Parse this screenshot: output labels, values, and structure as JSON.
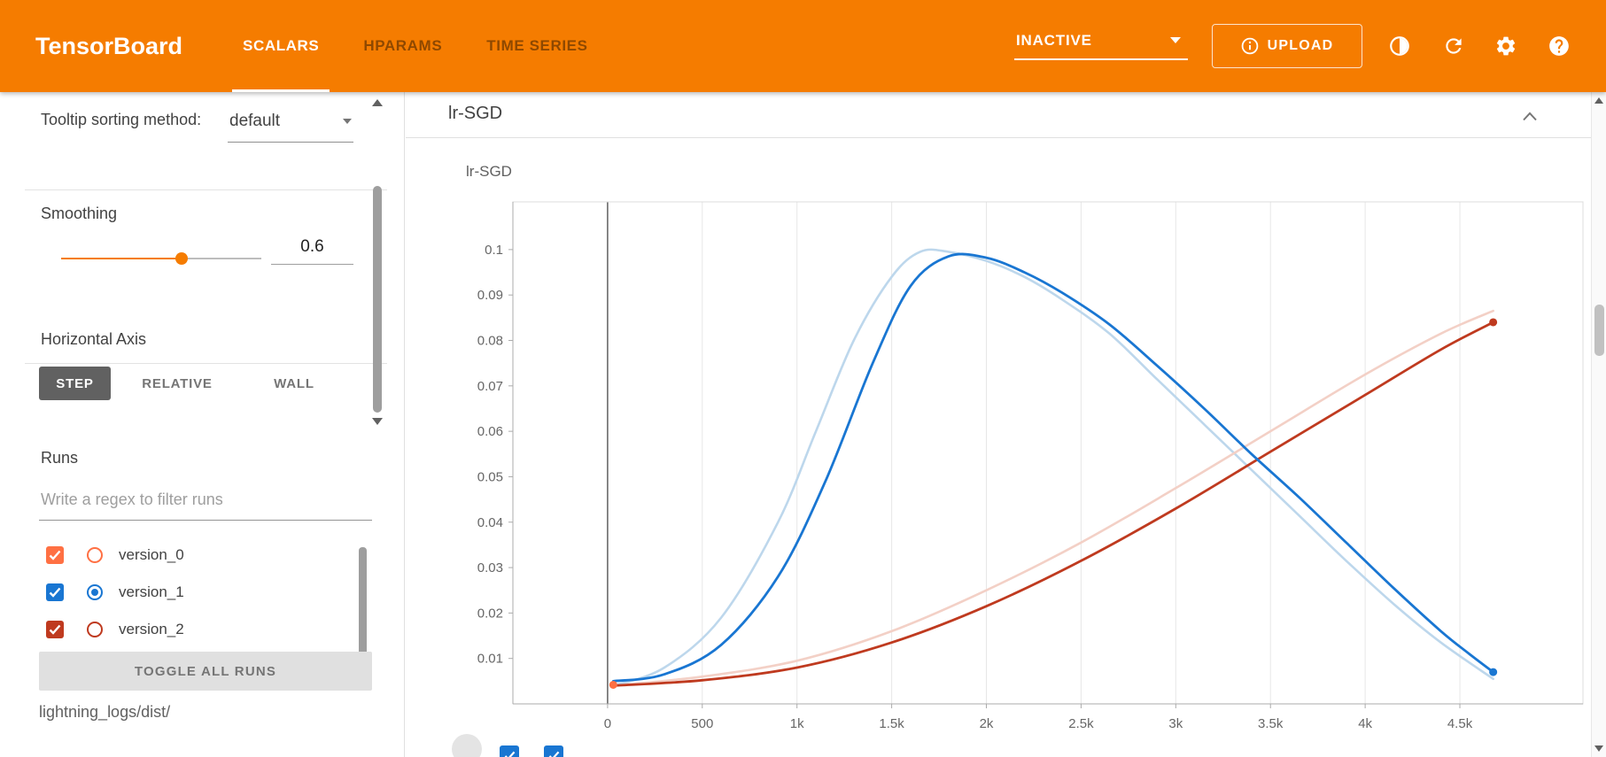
{
  "header": {
    "logo": "TensorBoard",
    "tabs": [
      {
        "label": "SCALARS",
        "active": true
      },
      {
        "label": "HPARAMS",
        "active": false
      },
      {
        "label": "TIME SERIES",
        "active": false
      }
    ],
    "status_dropdown": {
      "value": "INACTIVE"
    },
    "upload_button": {
      "label": "UPLOAD"
    },
    "icons": {
      "theme_toggle": "half-filled-circle",
      "refresh": "circular-arrow",
      "settings": "gear",
      "help": "question-mark-in-circle",
      "upload_info": "info-circle",
      "dropdown_caret": "triangle-down"
    },
    "colors": {
      "background": "#f57c00"
    }
  },
  "sidebar": {
    "tooltip_sorting": {
      "label": "Tooltip sorting method:",
      "value": "default"
    },
    "smoothing": {
      "label": "Smoothing",
      "value": "0.6",
      "percent": 60
    },
    "horizontal_axis": {
      "label": "Horizontal Axis",
      "options": [
        {
          "label": "STEP",
          "active": true
        },
        {
          "label": "RELATIVE",
          "active": false
        },
        {
          "label": "WALL",
          "active": false
        }
      ]
    },
    "runs": {
      "title": "Runs",
      "filter_placeholder": "Write a regex to filter runs",
      "items": [
        {
          "label": "version_0",
          "color": "#ff7043",
          "checked": true,
          "selected": false
        },
        {
          "label": "version_1",
          "color": "#1976d2",
          "checked": true,
          "selected": true
        },
        {
          "label": "version_2",
          "color": "#bf3a1f",
          "checked": true,
          "selected": false
        }
      ],
      "toggle_all_label": "TOGGLE ALL RUNS",
      "log_dir": "lightning_logs/dist/"
    }
  },
  "main": {
    "card_title": "lr-SGD"
  },
  "chart_data": {
    "type": "line",
    "title": "lr-SGD",
    "xlabel": "",
    "ylabel": "",
    "x_range": [
      -500,
      5150
    ],
    "y_range": [
      0,
      0.1105
    ],
    "grid": "vertical-only",
    "zero_line_x": 0,
    "x_ticks": {
      "values": [
        0,
        500,
        1000,
        1500,
        2000,
        2500,
        3000,
        3500,
        4000,
        4500
      ],
      "labels": [
        "0",
        "500",
        "1k",
        "1.5k",
        "2k",
        "2.5k",
        "3k",
        "3.5k",
        "4k",
        "4.5k"
      ]
    },
    "y_ticks": {
      "values": [
        0.01,
        0.02,
        0.03,
        0.04,
        0.05,
        0.06,
        0.07,
        0.08,
        0.09,
        0.1
      ],
      "labels": [
        "0.01",
        "0.02",
        "0.03",
        "0.04",
        "0.05",
        "0.06",
        "0.07",
        "0.08",
        "0.09",
        "0.1"
      ]
    },
    "series": [
      {
        "name": "version_1 (unsmoothed)",
        "color": "#bdd7ec",
        "width": 2.6,
        "end_dot": false,
        "points": [
          [
            30,
            0.004
          ],
          [
            300,
            0.008
          ],
          [
            600,
            0.019
          ],
          [
            900,
            0.04
          ],
          [
            1100,
            0.06
          ],
          [
            1300,
            0.08
          ],
          [
            1500,
            0.094
          ],
          [
            1650,
            0.0995
          ],
          [
            1800,
            0.0995
          ],
          [
            2000,
            0.0975
          ],
          [
            2200,
            0.094
          ],
          [
            2400,
            0.089
          ],
          [
            2650,
            0.0815
          ],
          [
            2900,
            0.0715
          ],
          [
            3150,
            0.0615
          ],
          [
            3400,
            0.0515
          ],
          [
            3650,
            0.0415
          ],
          [
            3900,
            0.0315
          ],
          [
            4150,
            0.022
          ],
          [
            4400,
            0.0135
          ],
          [
            4676,
            0.0055
          ]
        ]
      },
      {
        "name": "version_2 (unsmoothed)",
        "color": "#f3d0c6",
        "width": 2.6,
        "end_dot": false,
        "points": [
          [
            30,
            0.004
          ],
          [
            500,
            0.006
          ],
          [
            1000,
            0.0095
          ],
          [
            1500,
            0.016
          ],
          [
            2000,
            0.025
          ],
          [
            2500,
            0.0355
          ],
          [
            3000,
            0.0475
          ],
          [
            3500,
            0.06
          ],
          [
            4000,
            0.0725
          ],
          [
            4400,
            0.0815
          ],
          [
            4676,
            0.0865
          ]
        ]
      },
      {
        "name": "version_2 (smoothed 0.6)",
        "color": "#bf3a1f",
        "width": 2.8,
        "end_dot": true,
        "points": [
          [
            30,
            0.004
          ],
          [
            500,
            0.0052
          ],
          [
            1000,
            0.008
          ],
          [
            1500,
            0.0135
          ],
          [
            2000,
            0.0215
          ],
          [
            2500,
            0.0315
          ],
          [
            3000,
            0.043
          ],
          [
            3500,
            0.0555
          ],
          [
            4000,
            0.068
          ],
          [
            4400,
            0.078
          ],
          [
            4676,
            0.084
          ]
        ]
      },
      {
        "name": "version_1 (smoothed 0.6)",
        "color": "#1976d2",
        "width": 2.8,
        "end_dot": true,
        "points": [
          [
            30,
            0.005
          ],
          [
            300,
            0.0065
          ],
          [
            600,
            0.013
          ],
          [
            900,
            0.028
          ],
          [
            1150,
            0.049
          ],
          [
            1400,
            0.075
          ],
          [
            1600,
            0.092
          ],
          [
            1800,
            0.0985
          ],
          [
            2000,
            0.0982
          ],
          [
            2200,
            0.095
          ],
          [
            2400,
            0.0905
          ],
          [
            2650,
            0.0835
          ],
          [
            2900,
            0.0745
          ],
          [
            3150,
            0.065
          ],
          [
            3400,
            0.055
          ],
          [
            3650,
            0.0455
          ],
          [
            3900,
            0.0355
          ],
          [
            4150,
            0.0255
          ],
          [
            4400,
            0.016
          ],
          [
            4550,
            0.011
          ],
          [
            4676,
            0.007
          ]
        ]
      },
      {
        "name": "version_0",
        "color": "#ff7043",
        "width": 2.8,
        "end_dot": true,
        "points": [
          [
            30,
            0.0042
          ]
        ]
      }
    ]
  }
}
